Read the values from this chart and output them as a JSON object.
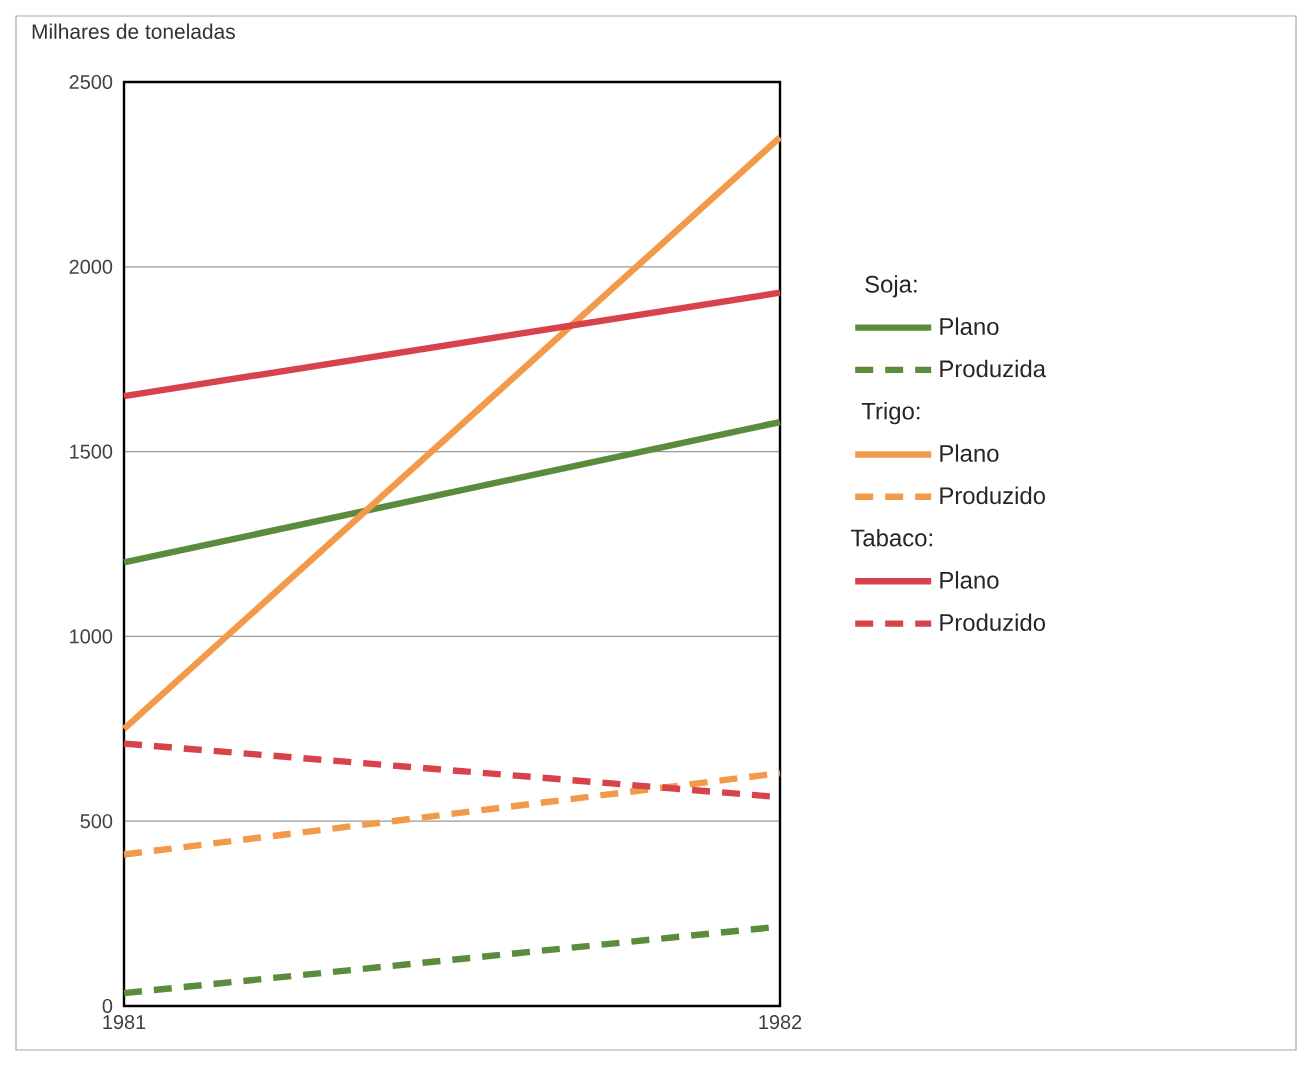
{
  "chart_data": {
    "type": "line",
    "ylabel": "Milhares de toneladas",
    "x": [
      1981,
      1982
    ],
    "xlim": [
      1981,
      1982
    ],
    "xticks": [
      1981,
      1982
    ],
    "ylim": [
      0,
      2500
    ],
    "yticks": [
      0,
      500,
      1000,
      1500,
      2000,
      2500
    ],
    "grid": "y",
    "legend": "right",
    "annotations": [
      "Soja:",
      "Trigo:",
      "Tabaco:"
    ],
    "series": [
      {
        "name": "Plano",
        "color": "#5b8c3e",
        "line_style": "solid",
        "values": [
          1200,
          1580
        ]
      },
      {
        "name": "Produzida",
        "color": "#5b8c3e",
        "line_style": "dashed",
        "values": [
          35,
          215
        ]
      },
      {
        "name": "Plano",
        "color": "#f39a4a",
        "line_style": "solid",
        "values": [
          750,
          2350
        ]
      },
      {
        "name": "Produzido",
        "color": "#f39a4a",
        "line_style": "dashed",
        "values": [
          410,
          630
        ]
      },
      {
        "name": "Plano",
        "color": "#d8424a",
        "line_style": "solid",
        "values": [
          1650,
          1930
        ]
      },
      {
        "name": "Produzido",
        "color": "#d8424a",
        "line_style": "dashed",
        "values": [
          710,
          565
        ]
      }
    ]
  }
}
